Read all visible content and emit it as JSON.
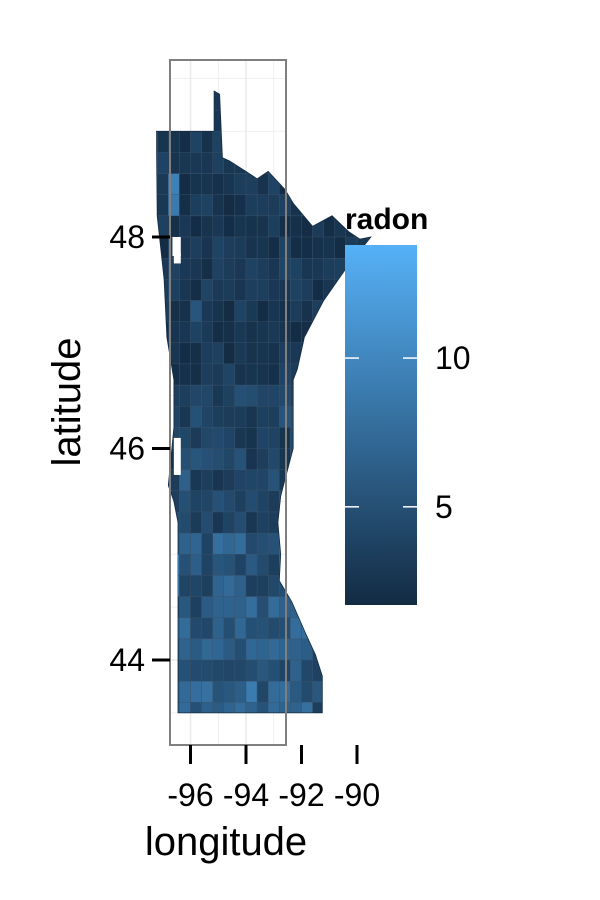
{
  "chart_data": {
    "type": "heatmap",
    "title": "",
    "xlabel": "longitude",
    "ylabel": "latitude",
    "x_ticks": [
      "-96",
      "-94",
      "-92",
      "-90"
    ],
    "x_tick_values": [
      -96,
      -94,
      -92,
      -90
    ],
    "y_ticks": [
      "44",
      "46",
      "48"
    ],
    "y_tick_values": [
      44,
      46,
      48
    ],
    "xlim": [
      -97.2,
      -89.2
    ],
    "ylim": [
      43.2,
      49.6
    ],
    "grid": true,
    "legend": {
      "title": "radon",
      "position": "right",
      "ticks": [
        "5",
        "10"
      ],
      "tick_values": [
        5,
        10
      ],
      "range": [
        1.7,
        13.8
      ],
      "low_color": "#132B43",
      "high_color": "#56B1F7"
    },
    "colors": {
      "panel_border": "#7f7f7f",
      "grid": "#ebebeb",
      "county_border": "#3a5068"
    }
  }
}
